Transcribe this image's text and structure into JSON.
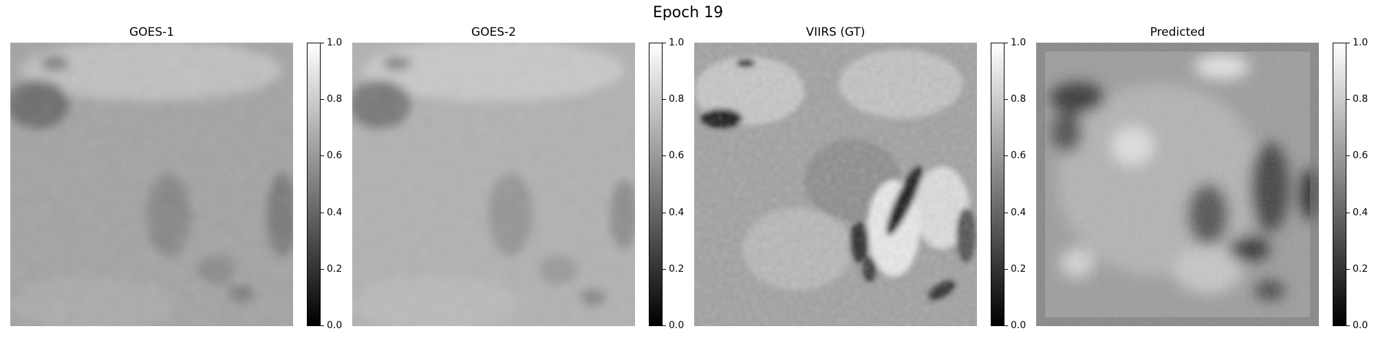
{
  "figure_title": "Epoch 19",
  "panels": [
    {
      "title": "GOES-1"
    },
    {
      "title": "GOES-2"
    },
    {
      "title": "VIIRS (GT)"
    },
    {
      "title": "Predicted"
    }
  ],
  "colorbar": {
    "colormap": "gray",
    "range": [
      0.0,
      1.0
    ],
    "ticks": [
      "0.0",
      "0.2",
      "0.4",
      "0.6",
      "0.8",
      "1.0"
    ]
  }
}
